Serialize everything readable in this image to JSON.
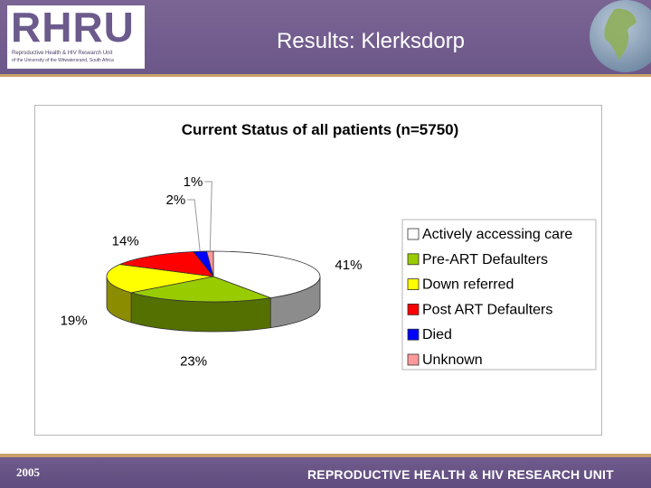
{
  "header": {
    "logo_text": "RHRU",
    "logo_sub1": "Reproductive Health & HIV Research Unit",
    "logo_sub2": "of the University of the Witwatersrand, South Africa",
    "title": "Results: Klerksdorp"
  },
  "footer": {
    "year": "2005",
    "org": "REPRODUCTIVE HEALTH & HIV RESEARCH UNIT"
  },
  "chart_data": {
    "type": "pie",
    "title": "Current Status of all patients (n=5750)",
    "categories": [
      "Actively accessing care",
      "Pre-ART Defaulters",
      "Down referred",
      "Post ART Defaulters",
      "Died",
      "Unknown"
    ],
    "values": [
      41,
      23,
      19,
      14,
      2,
      1
    ],
    "value_labels": [
      "41%",
      "23%",
      "19%",
      "14%",
      "2%",
      "1%"
    ],
    "colors": [
      "#ffffff",
      "#99cc00",
      "#ffff00",
      "#ff0000",
      "#0000ff",
      "#ff9999"
    ],
    "legend_position": "right",
    "style": "3d"
  }
}
